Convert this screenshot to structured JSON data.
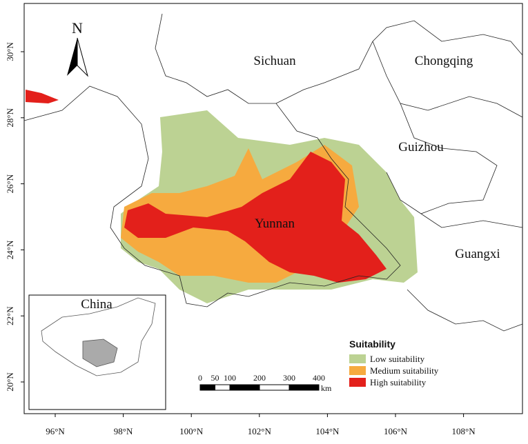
{
  "map": {
    "regions": [
      "Sichuan",
      "Chongqing",
      "Guizhou",
      "Yunnan",
      "Guangxi"
    ],
    "north": "N",
    "inset_label": "China",
    "legend": {
      "title": "Suitability",
      "items": [
        {
          "label": "Low suitability",
          "color": "#bcd293"
        },
        {
          "label": "Medium suitability",
          "color": "#f6aa3f"
        },
        {
          "label": "High suitability",
          "color": "#e3201b"
        }
      ]
    },
    "scale_bar": {
      "ticks": [
        0,
        50,
        100,
        200,
        300,
        400
      ],
      "unit": "km"
    },
    "longitude_ticks": [
      {
        "value": 96,
        "label": "96°N"
      },
      {
        "value": 98,
        "label": "98°N"
      },
      {
        "value": 100,
        "label": "100°N"
      },
      {
        "value": 102,
        "label": "102°N"
      },
      {
        "value": 104,
        "label": "104°N"
      },
      {
        "value": 106,
        "label": "106°N"
      },
      {
        "value": 108,
        "label": "108°N"
      }
    ],
    "latitude_ticks": [
      {
        "value": 20,
        "label": "20°N"
      },
      {
        "value": 22,
        "label": "22°N"
      },
      {
        "value": 24,
        "label": "24°N"
      },
      {
        "value": 26,
        "label": "26°N"
      },
      {
        "value": 28,
        "label": "28°N"
      },
      {
        "value": 30,
        "label": "30°N"
      }
    ]
  }
}
